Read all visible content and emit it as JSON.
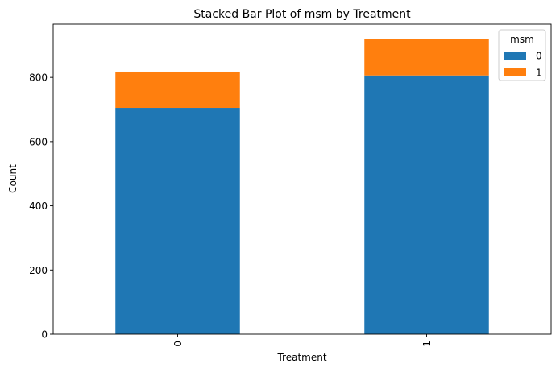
{
  "chart_data": {
    "type": "bar",
    "stacked": true,
    "title": "Stacked Bar Plot of msm by Treatment",
    "xlabel": "Treatment",
    "ylabel": "Count",
    "categories": [
      "0",
      "1"
    ],
    "series": [
      {
        "name": "0",
        "values": [
          705,
          806
        ],
        "color": "#1f77b4"
      },
      {
        "name": "1",
        "values": [
          113,
          114
        ],
        "color": "#ff7f0e"
      }
    ],
    "ylim": [
      0,
      966
    ],
    "yticks": [
      0,
      200,
      400,
      600,
      800
    ],
    "grid": false,
    "legend": {
      "title": "msm",
      "placement": "top-right"
    }
  }
}
